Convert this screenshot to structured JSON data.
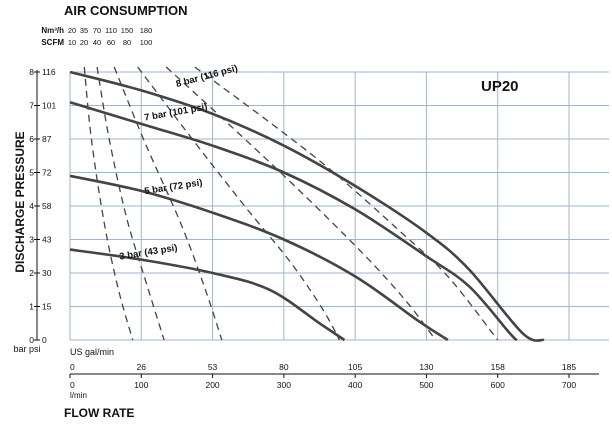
{
  "title_top": "AIR CONSUMPTION",
  "model": "UP20",
  "colors": {
    "grid": "#9fb6cd",
    "curve": "#444444",
    "text": "#111111"
  },
  "chart_data": {
    "type": "line",
    "title": "AIR CONSUMPTION",
    "xlabel": "FLOW RATE",
    "ylabel": "DISCHARGE PRESSURE",
    "x_unit_primary": "US gal/min",
    "x_unit_secondary": "l/min",
    "y_unit_primary": "bar",
    "y_unit_secondary": "psi",
    "y_units_label": "bar psi",
    "xlim_lmin": [
      0,
      700
    ],
    "ylim_bar": [
      0,
      8
    ],
    "grid": true,
    "x_ticks_gpm": [
      "0",
      "26",
      "53",
      "80",
      "105",
      "130",
      "158",
      "185"
    ],
    "x_ticks_lmin": [
      "0",
      "100",
      "200",
      "300",
      "400",
      "500",
      "600",
      "700"
    ],
    "y_ticks_bar": [
      "0",
      "1",
      "2",
      "3",
      "4",
      "5",
      "6",
      "7",
      "8"
    ],
    "y_ticks_psi": [
      "0",
      "15",
      "30",
      "43",
      "58",
      "72",
      "87",
      "101",
      "116"
    ],
    "air_nm3h_label": "Nm³/h",
    "air_nm3h": [
      "20",
      "35",
      "70",
      "110",
      "150",
      "180"
    ],
    "air_scfm_label": "SCFM",
    "air_scfm": [
      "10",
      "20",
      "40",
      "60",
      "80",
      "100"
    ],
    "pressure_curves": [
      {
        "name": "8 bar (116 psi)",
        "points": [
          [
            0,
            8.0
          ],
          [
            100,
            7.45
          ],
          [
            200,
            6.75
          ],
          [
            300,
            5.8
          ],
          [
            400,
            4.6
          ],
          [
            500,
            3.2
          ],
          [
            560,
            2.1
          ],
          [
            635,
            0.2
          ],
          [
            665,
            0
          ]
        ]
      },
      {
        "name": "7 bar (101 psi)",
        "points": [
          [
            0,
            7.1
          ],
          [
            100,
            6.45
          ],
          [
            200,
            5.8
          ],
          [
            300,
            5.0
          ],
          [
            400,
            3.9
          ],
          [
            500,
            2.5
          ],
          [
            560,
            1.6
          ],
          [
            617,
            0.2
          ],
          [
            627,
            0
          ]
        ]
      },
      {
        "name": "5 bar (72 psi)",
        "points": [
          [
            0,
            4.9
          ],
          [
            100,
            4.45
          ],
          [
            200,
            3.8
          ],
          [
            300,
            3.0
          ],
          [
            400,
            1.9
          ],
          [
            490,
            0.55
          ],
          [
            530,
            0
          ]
        ]
      },
      {
        "name": "3 bar (43 psi)",
        "points": [
          [
            0,
            2.7
          ],
          [
            100,
            2.4
          ],
          [
            200,
            2.0
          ],
          [
            280,
            1.5
          ],
          [
            350,
            0.5
          ],
          [
            385,
            0
          ]
        ]
      }
    ],
    "air_consumption_curves": [
      {
        "label": "10",
        "points": [
          [
            20,
            8.15
          ],
          [
            30,
            6.0
          ],
          [
            48,
            3.5
          ],
          [
            68,
            1.5
          ],
          [
            88,
            0
          ]
        ]
      },
      {
        "label": "20",
        "points": [
          [
            38,
            8.15
          ],
          [
            55,
            6.0
          ],
          [
            80,
            3.6
          ],
          [
            110,
            1.5
          ],
          [
            132,
            0
          ]
        ]
      },
      {
        "label": "40",
        "points": [
          [
            62,
            8.15
          ],
          [
            105,
            5.9
          ],
          [
            155,
            3.5
          ],
          [
            190,
            1.5
          ],
          [
            213,
            0
          ]
        ]
      },
      {
        "label": "60",
        "points": [
          [
            95,
            8.15
          ],
          [
            175,
            5.9
          ],
          [
            245,
            4.0
          ],
          [
            310,
            2.3
          ],
          [
            355,
            0.9
          ],
          [
            378,
            0
          ]
        ]
      },
      {
        "label": "80",
        "points": [
          [
            135,
            8.15
          ],
          [
            230,
            6.3
          ],
          [
            320,
            4.5
          ],
          [
            410,
            2.6
          ],
          [
            470,
            1.2
          ],
          [
            513,
            0
          ]
        ]
      },
      {
        "label": "100",
        "points": [
          [
            175,
            8.15
          ],
          [
            280,
            6.5
          ],
          [
            370,
            5.0
          ],
          [
            460,
            3.3
          ],
          [
            530,
            1.9
          ],
          [
            600,
            0
          ]
        ]
      }
    ]
  }
}
